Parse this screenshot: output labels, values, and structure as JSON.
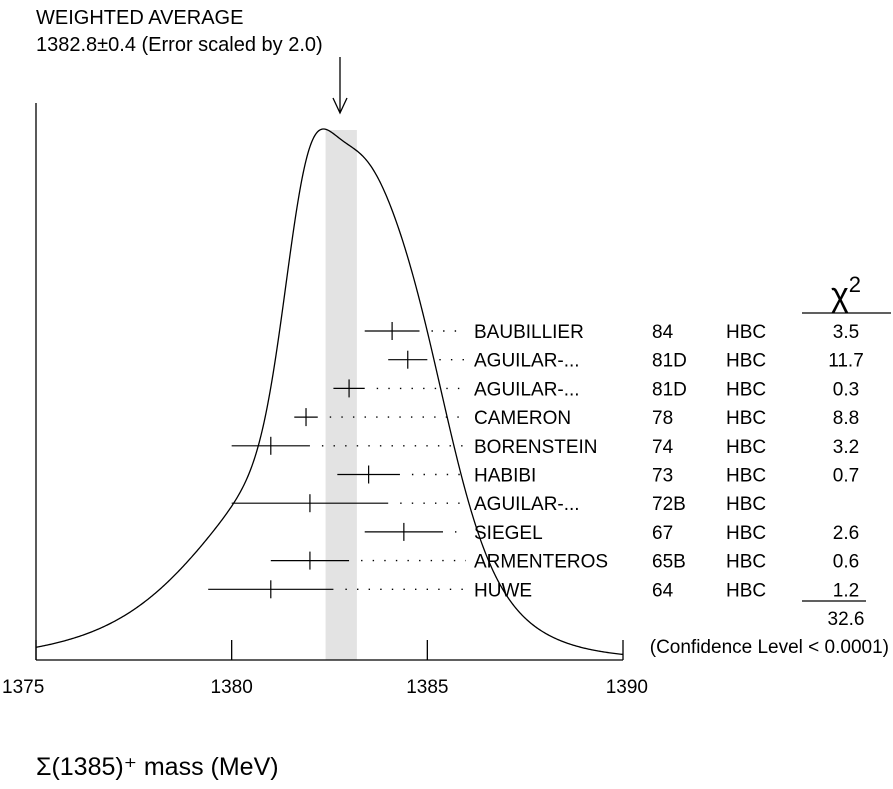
{
  "chart_data": {
    "type": "ideogram",
    "title": "WEIGHTED AVERAGE",
    "subtitle": "1382.8±0.4 (Error scaled by 2.0)",
    "xlabel": "Σ(1385)⁺ mass (MeV)",
    "xlim": [
      1375,
      1390
    ],
    "x_ticks": [
      1375,
      1380,
      1385,
      1390
    ],
    "weighted_average": {
      "value": 1382.8,
      "error": 0.4,
      "scale_factor": 2.0
    },
    "chi2_header": "χ²",
    "measurements": [
      {
        "author": "BAUBILLIER",
        "year": "84",
        "tech": "HBC",
        "value": 1384.1,
        "err": 0.7,
        "chi2": "3.5"
      },
      {
        "author": "AGUILAR-...",
        "year": "81D",
        "tech": "HBC",
        "value": 1384.5,
        "err": 0.5,
        "chi2": "11.7"
      },
      {
        "author": "AGUILAR-...",
        "year": "81D",
        "tech": "HBC",
        "value": 1383.0,
        "err": 0.4,
        "chi2": "0.3"
      },
      {
        "author": "CAMERON",
        "year": "78",
        "tech": "HBC",
        "value": 1381.9,
        "err": 0.3,
        "chi2": "8.8"
      },
      {
        "author": "BORENSTEIN",
        "year": "74",
        "tech": "HBC",
        "value": 1381.0,
        "err": 1.0,
        "chi2": "3.2"
      },
      {
        "author": "HABIBI",
        "year": "73",
        "tech": "HBC",
        "value": 1383.5,
        "err": 0.8,
        "chi2": "0.7"
      },
      {
        "author": "AGUILAR-...",
        "year": "72B",
        "tech": "HBC",
        "value": 1382.0,
        "err": 2.0,
        "chi2": ""
      },
      {
        "author": "SIEGEL",
        "year": "67",
        "tech": "HBC",
        "value": 1384.4,
        "err": 1.0,
        "chi2": "2.6"
      },
      {
        "author": "ARMENTEROS",
        "year": "65B",
        "tech": "HBC",
        "value": 1382.0,
        "err": 1.0,
        "chi2": "0.6"
      },
      {
        "author": "HUWE",
        "year": "64",
        "tech": "HBC",
        "value": 1381.0,
        "err": 1.6,
        "chi2": "1.2"
      }
    ],
    "chi2_total": "32.6",
    "confidence_level": "(Confidence Level < 0.0001)",
    "colors": {
      "band": "#e3e3e3",
      "ink": "#000000"
    }
  }
}
